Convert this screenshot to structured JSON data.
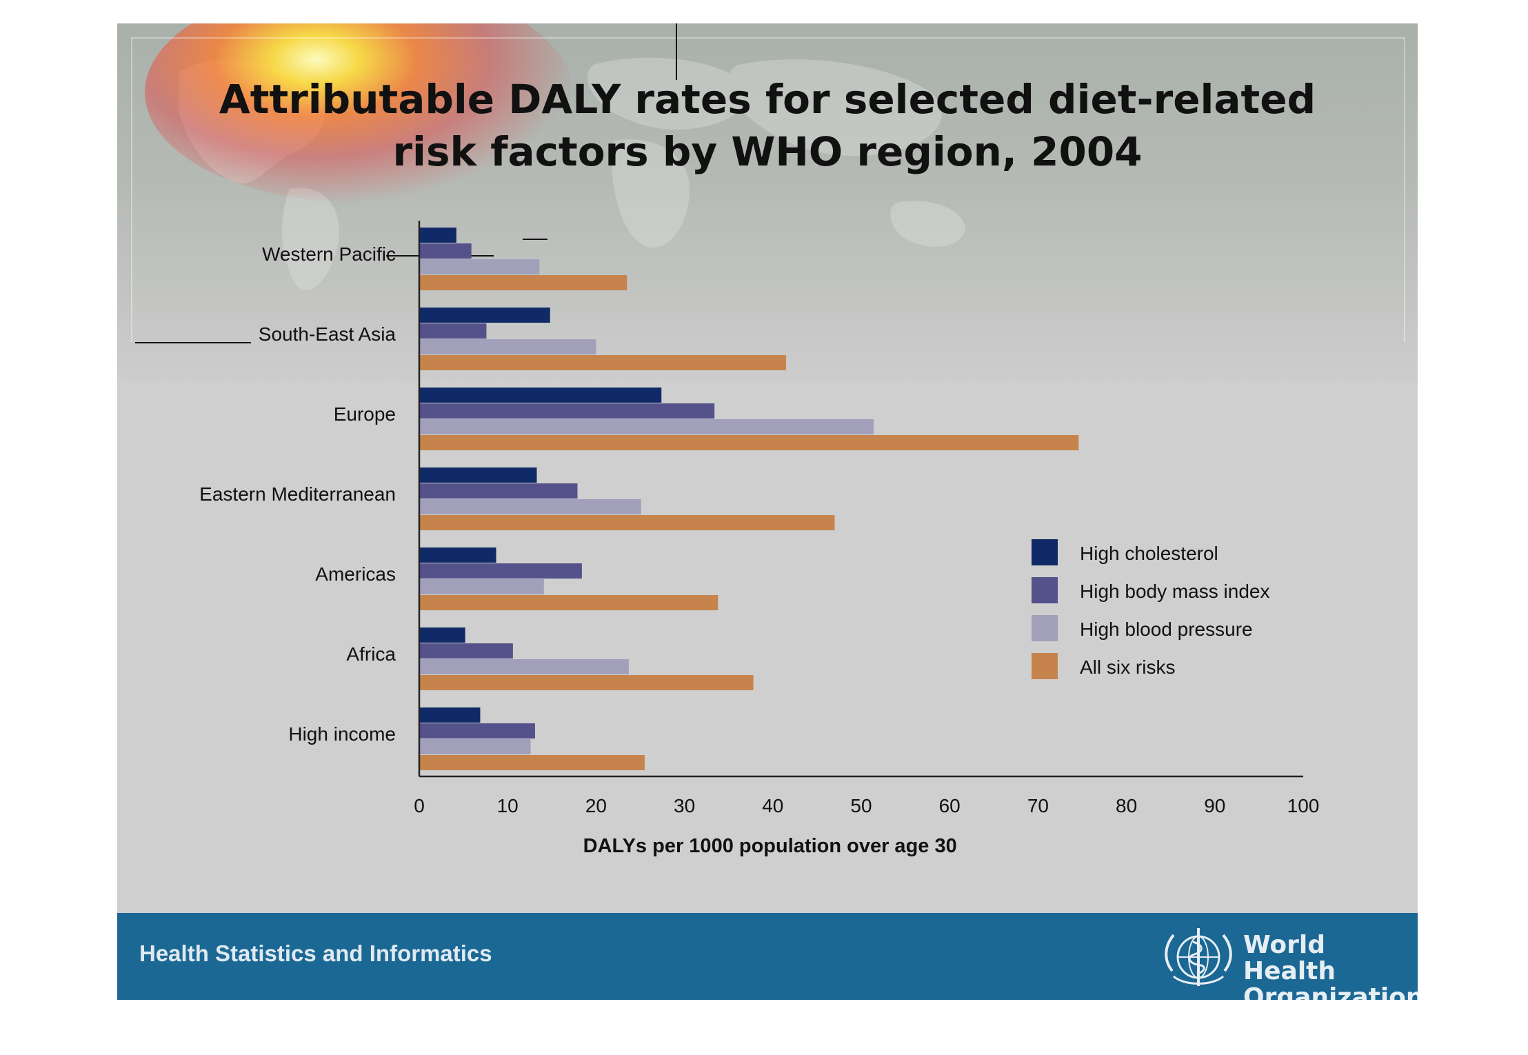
{
  "slide": {
    "title_line1": "Attributable DALY rates for selected diet-related",
    "title_line2": "risk factors by WHO region, 2004",
    "footer_text": "Health Statistics and Informatics",
    "org_line1": "World Health",
    "org_line2": "Organization"
  },
  "colors": {
    "background": "#cfcfcf",
    "footer": "#1b6894",
    "high_cholesterol": "#0f2a66",
    "high_bmi": "#55518a",
    "high_bp": "#a19fba",
    "all_six": "#c6844c"
  },
  "chart_data": {
    "type": "bar",
    "orientation": "horizontal",
    "title": "Attributable DALY rates for selected diet-related risk factors by WHO region, 2004",
    "xlabel": "DALYs per 1000 population over age 30",
    "ylabel": "",
    "xlim": [
      0,
      100
    ],
    "xticks": [
      0,
      10,
      20,
      30,
      40,
      50,
      60,
      70,
      80,
      90,
      100
    ],
    "grid": false,
    "legend_position": "right",
    "categories": [
      "Western Pacific",
      "South-East Asia",
      "Europe",
      "Eastern Mediterranean",
      "Americas",
      "Africa",
      "High income"
    ],
    "series": [
      {
        "name": "High cholesterol",
        "color": "#0f2a66",
        "values": [
          4.2,
          14.8,
          27.4,
          13.3,
          8.7,
          5.2,
          6.9
        ]
      },
      {
        "name": "High body mass index",
        "color": "#55518a",
        "values": [
          5.9,
          7.6,
          33.4,
          17.9,
          18.4,
          10.6,
          13.1
        ]
      },
      {
        "name": "High blood pressure",
        "color": "#a19fba",
        "values": [
          13.6,
          20.0,
          51.4,
          25.1,
          14.1,
          23.7,
          12.6
        ]
      },
      {
        "name": "All six risks",
        "color": "#c6844c",
        "values": [
          23.5,
          41.5,
          74.6,
          47.0,
          33.8,
          37.8,
          25.5
        ]
      }
    ]
  }
}
